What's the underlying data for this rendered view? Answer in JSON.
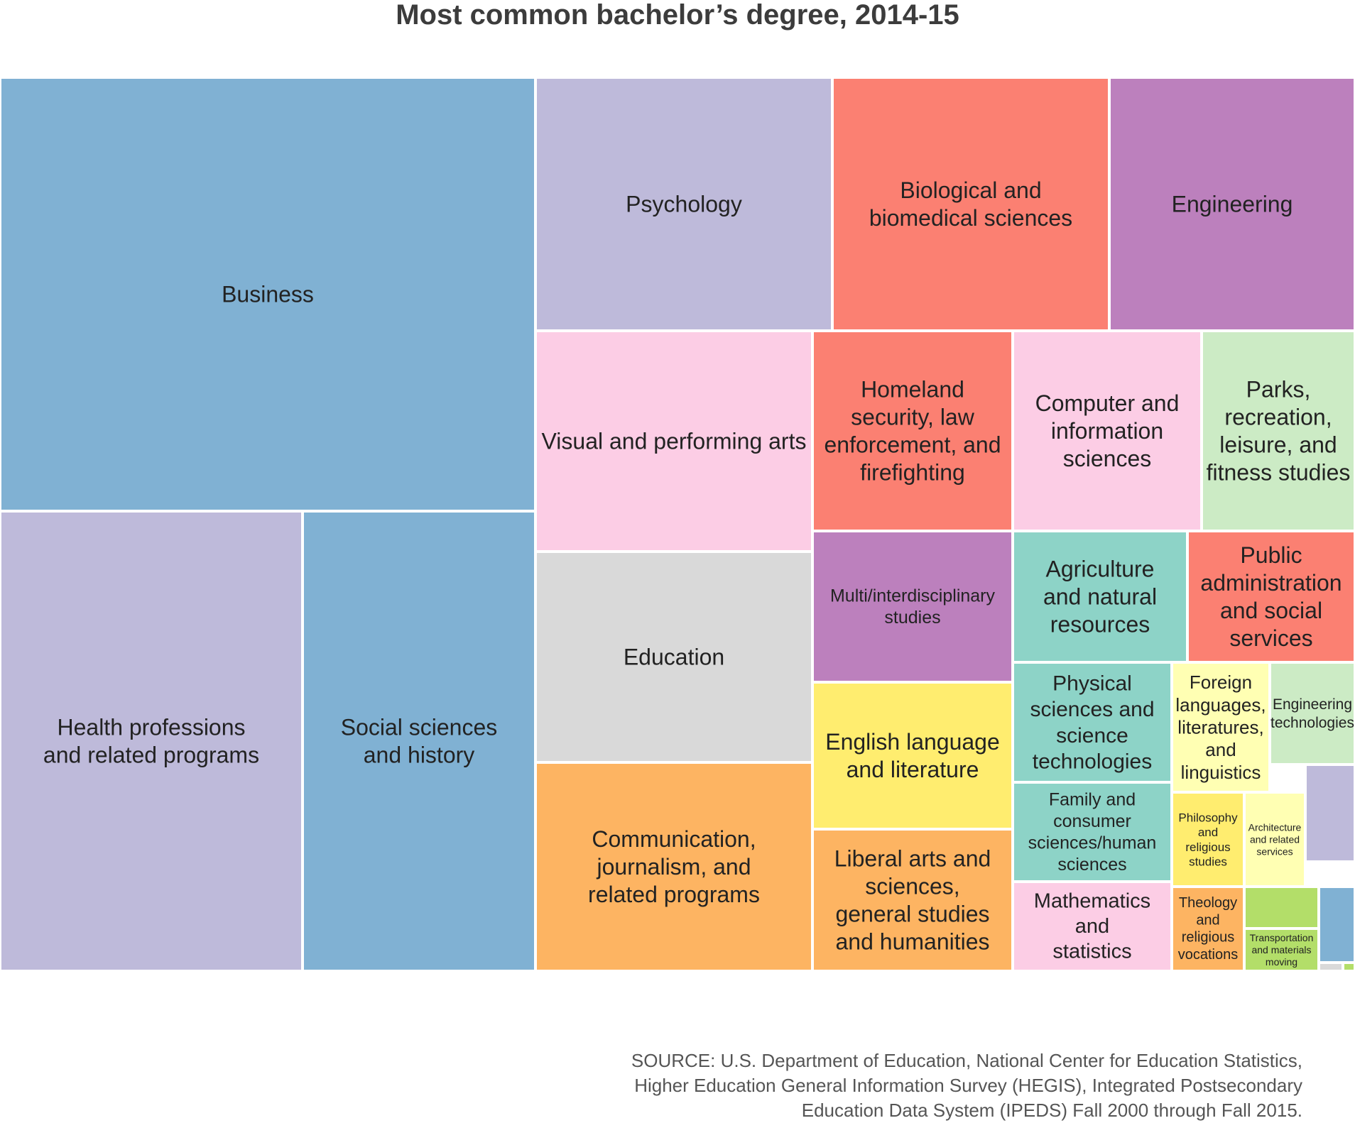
{
  "chart_data": {
    "type": "treemap",
    "title": "Most common bachelor’s degree, 2014-15",
    "source": [
      "SOURCE: U.S. Department of Education, National Center for Education Statistics,",
      "Higher Education General Information Survey (HEGIS), Integrated Postsecondary",
      "Education Data System (IPEDS) Fall 2000 through Fall 2015."
    ],
    "items": [
      {
        "name": "Business",
        "label": [
          "Business"
        ],
        "value": 363799,
        "color": "#80b1d3"
      },
      {
        "name": "Health professions and related programs",
        "label": [
          "Health professions",
          "and related programs"
        ],
        "value": 216228,
        "color": "#bebada"
      },
      {
        "name": "Social sciences and history",
        "label": [
          "Social sciences",
          "and history"
        ],
        "value": 167984,
        "color": "#80b1d3"
      },
      {
        "name": "Psychology",
        "label": [
          "Psychology"
        ],
        "value": 117440,
        "color": "#bebada"
      },
      {
        "name": "Biological and biomedical sciences",
        "label": [
          "Biological and",
          "biomedical sciences"
        ],
        "value": 109896,
        "color": "#fb8072"
      },
      {
        "name": "Engineering",
        "label": [
          "Engineering"
        ],
        "value": 97858,
        "color": "#bc80bd"
      },
      {
        "name": "Visual and performing arts",
        "label": [
          "Visual and performing arts"
        ],
        "value": 95833,
        "color": "#fccde5"
      },
      {
        "name": "Education",
        "label": [
          "Education"
        ],
        "value": 91623,
        "color": "#d9d9d9"
      },
      {
        "name": "Communication, journalism, and related programs",
        "label": [
          "Communication,",
          "journalism, and",
          "related programs"
        ],
        "value": 90650,
        "color": "#fdb462"
      },
      {
        "name": "Homeland security, law enforcement, and firefighting",
        "label": [
          "Homeland",
          "security, law",
          "enforcement, and",
          "firefighting"
        ],
        "value": 62723,
        "color": "#fb8072"
      },
      {
        "name": "Computer and information sciences",
        "label": [
          "Computer and",
          "information",
          "sciences"
        ],
        "value": 59581,
        "color": "#fccde5"
      },
      {
        "name": "Parks, recreation, leisure, and fitness studies",
        "label": [
          "Parks,",
          "recreation,",
          "leisure, and",
          "fitness studies"
        ],
        "value": 49006,
        "color": "#ccebc5"
      },
      {
        "name": "Multi/interdisciplinary studies",
        "label": [
          "Multi/interdisciplinary",
          "studies"
        ],
        "value": 48006,
        "color": "#bc80bd"
      },
      {
        "name": "English language and literature",
        "label": [
          "English language",
          "and literature"
        ],
        "value": 45847,
        "color": "#ffed6f"
      },
      {
        "name": "Liberal arts and sciences, general studies and humanities",
        "label": [
          "Liberal arts and",
          "sciences,",
          "general studies",
          "and humanities"
        ],
        "value": 43647,
        "color": "#fdb462"
      },
      {
        "name": "Agriculture and natural resources",
        "label": [
          "Agriculture",
          "and natural",
          "resources"
        ],
        "value": 36277,
        "color": "#8dd3c7"
      },
      {
        "name": "Public administration and social services",
        "label": [
          "Public",
          "administration",
          "and social",
          "services"
        ],
        "value": 34363,
        "color": "#fb8072"
      },
      {
        "name": "Physical sciences and science technologies",
        "label": [
          "Physical",
          "sciences and",
          "science",
          "technologies"
        ],
        "value": 30038,
        "color": "#8dd3c7"
      },
      {
        "name": "Foreign languages, literatures, and linguistics",
        "label": [
          "Foreign",
          "languages,",
          "literatures,",
          "and",
          "linguistics"
        ],
        "value": 20321,
        "color": "#ffffb3"
      },
      {
        "name": "Engineering technologies",
        "label": [
          "Engineering",
          "technologies"
        ],
        "value": 17942,
        "color": "#ccebc5"
      },
      {
        "name": "Family and consumer sciences/human sciences",
        "label": [
          "Family and",
          "consumer",
          "sciences/human",
          "sciences"
        ],
        "value": 24584,
        "color": "#8dd3c7"
      },
      {
        "name": "Mathematics and statistics",
        "label": [
          "Mathematics",
          "and",
          "statistics"
        ],
        "value": 21853,
        "color": "#fccde5"
      },
      {
        "name": "Philosophy and religious studies",
        "label": [
          "Philosophy",
          "and",
          "religious",
          "studies"
        ],
        "value": 10072,
        "color": "#ffed6f"
      },
      {
        "name": "Architecture and related services",
        "label": [
          "Architecture",
          "and related",
          "services"
        ],
        "value": 9090,
        "color": "#ffffb3"
      },
      {
        "name": "Theology and religious vocations",
        "label": [
          "Theology",
          "and",
          "religious",
          "vocations"
        ],
        "value": 9428,
        "color": "#fdb462"
      },
      {
        "name": "Transportation and materials moving",
        "label": [
          "Transportation",
          "and materials",
          "moving"
        ],
        "value": 4925,
        "color": "#b3de69"
      }
    ],
    "unlabeled_cells": [
      {
        "color": "#bebada"
      },
      {
        "color": "#b3de69"
      },
      {
        "color": "#80b1d3"
      },
      {
        "color": "#d9d9d9"
      },
      {
        "color": "#b3de69"
      }
    ]
  }
}
